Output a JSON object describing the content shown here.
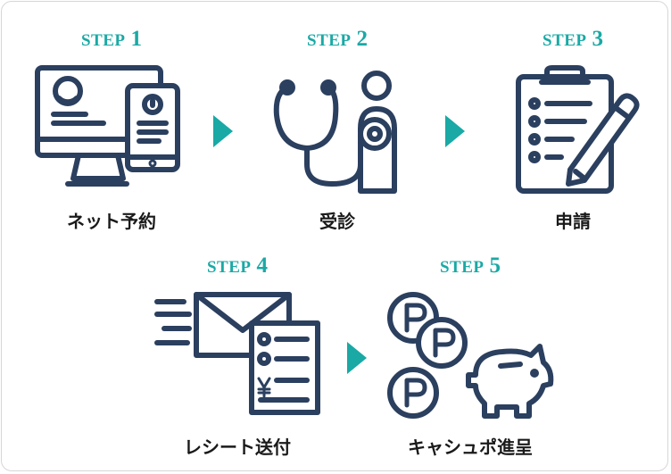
{
  "colors": {
    "accent": "#1aa9a5",
    "icon_navy": "#2b3f5f",
    "text": "#1a1a1a",
    "border": "#d6d6d6"
  },
  "steps": [
    {
      "word": "STEP",
      "number": "1",
      "caption": "ネット予約",
      "icon": "computer-and-phone-icon"
    },
    {
      "word": "STEP",
      "number": "2",
      "caption": "受診",
      "icon": "stethoscope-doctor-icon"
    },
    {
      "word": "STEP",
      "number": "3",
      "caption": "申請",
      "icon": "clipboard-pencil-icon"
    },
    {
      "word": "STEP",
      "number": "4",
      "caption": "レシート送付",
      "icon": "envelope-receipt-icon"
    },
    {
      "word": "STEP",
      "number": "5",
      "caption": "キャシュポ進呈",
      "icon": "points-coins-piggybank-icon"
    }
  ]
}
